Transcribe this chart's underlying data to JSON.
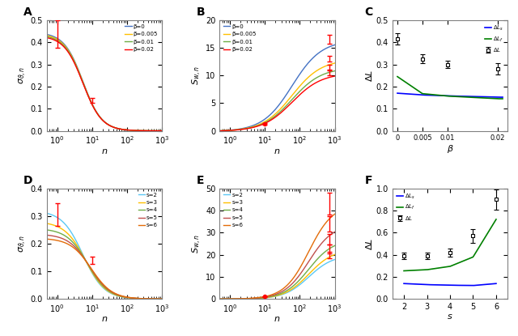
{
  "beta_colors": [
    "#4472C4",
    "#FFC000",
    "#70AD47",
    "#FF0000"
  ],
  "beta_labels": [
    "β=0",
    "β=0.005",
    "β=0.01",
    "β=0.02"
  ],
  "s_colors": [
    "#5BC8F5",
    "#FFC000",
    "#70AD47",
    "#C0504D",
    "#E36C09"
  ],
  "s_labels": [
    "s=2",
    "s=3",
    "s=4",
    "s=5",
    "s=6"
  ],
  "panel_C_beta": [
    0,
    0.005,
    0.01,
    0.02
  ],
  "panel_C_DeltaL": [
    0.415,
    0.325,
    0.3,
    0.28
  ],
  "panel_C_DeltaL_err": [
    0.025,
    0.02,
    0.018,
    0.025
  ],
  "panel_C_DeltaLs": [
    0.17,
    0.162,
    0.158,
    0.152
  ],
  "panel_C_DeltaLf": [
    0.245,
    0.168,
    0.157,
    0.145
  ],
  "panel_F_s": [
    2,
    3,
    4,
    5,
    6
  ],
  "panel_F_DeltaL": [
    0.39,
    0.39,
    0.42,
    0.57,
    0.9
  ],
  "panel_F_DeltaL_err": [
    0.03,
    0.03,
    0.035,
    0.06,
    0.09
  ],
  "panel_F_DeltaLs": [
    0.14,
    0.13,
    0.125,
    0.122,
    0.14
  ],
  "panel_F_DeltaLf": [
    0.255,
    0.265,
    0.295,
    0.38,
    0.72
  ],
  "sigma_A_maxes": [
    0.445,
    0.44,
    0.435,
    0.43
  ],
  "sigma_D_maxes": [
    0.32,
    0.28,
    0.255,
    0.235,
    0.22
  ],
  "S_B_maxes": [
    16.5,
    13.0,
    11.5,
    10.5
  ],
  "S_E_maxes": [
    20.0,
    22.5,
    27.0,
    34.0,
    43.0
  ]
}
